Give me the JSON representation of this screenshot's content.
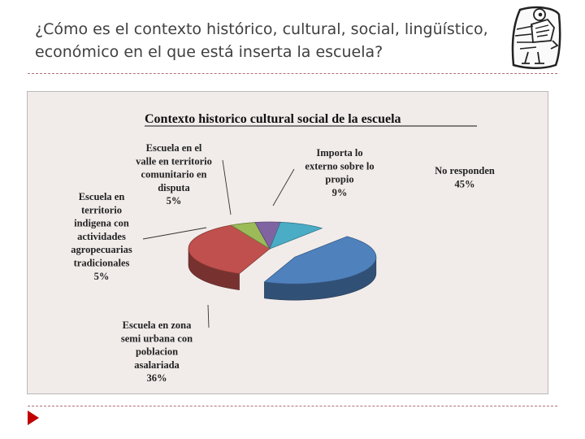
{
  "slide": {
    "title_line1": "¿Cómo es el contexto histórico, cultural, social, lingüístico,",
    "title_line2": "económico en el que está inserta la escuela?"
  },
  "colors": {
    "divider": "#b07070",
    "chart_background": "#f1ecea",
    "nav_arrow": "#c00000"
  },
  "icons": {
    "logo": "bird-with-speech-bubble-logo",
    "nav": "right-triangle-arrow-icon"
  },
  "chart_data": {
    "type": "pie",
    "title": "Contexto historico cultural social de la escuela",
    "three_d": true,
    "series": [
      {
        "label_lines": [
          "No responden",
          "45%"
        ],
        "value": 45,
        "color": "#4f81bd"
      },
      {
        "label_lines": [
          "Escuela en zona",
          "semi urbana con",
          "poblacion",
          "asalariada",
          "36%"
        ],
        "value": 36,
        "color": "#c0504d"
      },
      {
        "label_lines": [
          "Escuela en",
          "territorio",
          "indigena con",
          "actividades",
          "agropecuarias",
          "tradicionales",
          "5%"
        ],
        "value": 5,
        "color": "#9bbb59"
      },
      {
        "label_lines": [
          "Escuela en el",
          "valle en territorio",
          "comunitario en",
          "disputa",
          "5%"
        ],
        "value": 5,
        "color": "#8064a2"
      },
      {
        "label_lines": [
          "Importa lo",
          "externo sobre lo",
          "propio",
          "9%"
        ],
        "value": 9,
        "color": "#4bacc6"
      }
    ]
  }
}
